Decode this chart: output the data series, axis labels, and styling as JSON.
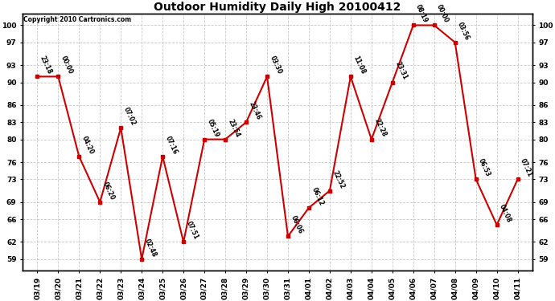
{
  "title": "Outdoor Humidity Daily High 20100412",
  "copyright": "Copyright 2010 Cartronics.com",
  "background_color": "#ffffff",
  "plot_bg_color": "#ffffff",
  "line_color": "#cc0000",
  "marker_color": "#cc0000",
  "x_labels": [
    "03/19",
    "03/20",
    "03/21",
    "03/22",
    "03/23",
    "03/24",
    "03/25",
    "03/26",
    "03/27",
    "03/28",
    "03/29",
    "03/30",
    "03/31",
    "04/01",
    "04/02",
    "04/03",
    "04/04",
    "04/05",
    "04/06",
    "04/07",
    "04/08",
    "04/09",
    "04/10",
    "04/11"
  ],
  "y_values": [
    91,
    91,
    77,
    69,
    82,
    59,
    77,
    62,
    80,
    80,
    83,
    91,
    63,
    68,
    71,
    91,
    80,
    90,
    100,
    100,
    97,
    73,
    65,
    73
  ],
  "point_labels": [
    "23:18",
    "00:00",
    "04:20",
    "06:20",
    "07:02",
    "02:48",
    "07:16",
    "07:51",
    "05:19",
    "23:54",
    "23:46",
    "03:30",
    "06:06",
    "06:12",
    "22:52",
    "11:08",
    "22:28",
    "23:31",
    "08:19",
    "00:00",
    "03:56",
    "06:53",
    "04:08",
    "07:21"
  ],
  "yticks": [
    59,
    62,
    66,
    69,
    73,
    76,
    80,
    83,
    86,
    90,
    93,
    97,
    100
  ],
  "ylim": [
    57,
    102
  ],
  "grid_color": "#c8c8c8",
  "figsize": [
    6.9,
    3.75
  ],
  "dpi": 100,
  "title_fontsize": 10,
  "tick_fontsize": 6.5,
  "annot_fontsize": 5.5
}
